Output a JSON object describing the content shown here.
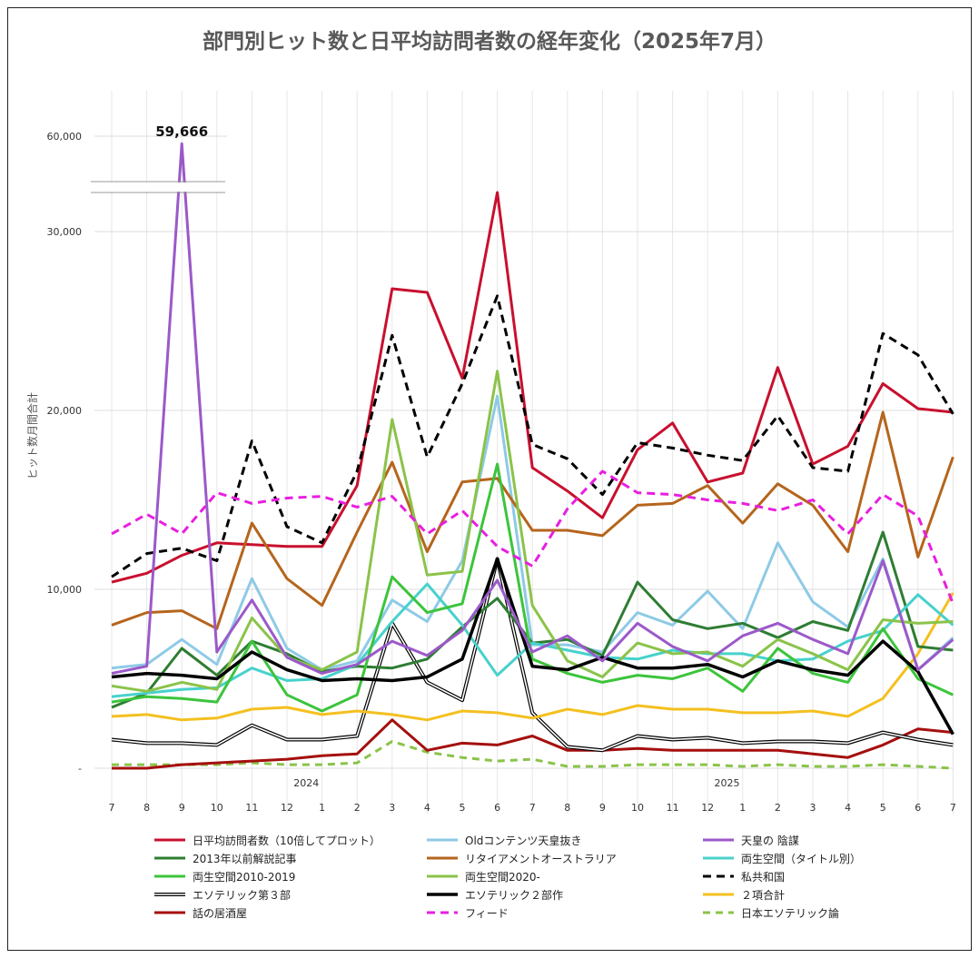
{
  "chart_data": {
    "type": "line",
    "title": "部門別ヒット数と日平均訪問者数の経年変化（2025年7月）",
    "ylabel": "ヒット数月間合計",
    "y_ticks": [
      "-",
      "10,000",
      "20,000",
      "30,000",
      "60,000"
    ],
    "peak_label": "59,666",
    "x": [
      "7",
      "8",
      "9",
      "10",
      "11",
      "12",
      "1",
      "2",
      "3",
      "4",
      "5",
      "6",
      "7",
      "8",
      "9",
      "10",
      "11",
      "12",
      "1",
      "2",
      "3",
      "4",
      "5",
      "6",
      "7"
    ],
    "year_labels": [
      {
        "index": 6,
        "text": "2024"
      },
      {
        "index": 18,
        "text": "2025"
      }
    ],
    "axis_break": {
      "low_max": 32000,
      "high_min": 58000,
      "high_max": 62000
    },
    "ylim": [
      0,
      62000
    ],
    "series": [
      {
        "name": "日平均訪問者数（10倍してプロット）",
        "color": "#c8102e",
        "dash": "solid",
        "values": [
          10400,
          10900,
          11900,
          12600,
          12500,
          12400,
          12400,
          15800,
          26800,
          26600,
          21800,
          33000,
          16800,
          15500,
          14000,
          17800,
          19300,
          16000,
          16500,
          22400,
          17000,
          18000,
          21500,
          20100,
          19900
        ]
      },
      {
        "name": "Oldコンテンツ天皇抜き",
        "color": "#8ecae6",
        "dash": "solid",
        "values": [
          5600,
          5800,
          7200,
          5800,
          10600,
          6700,
          5500,
          6000,
          9400,
          8200,
          11600,
          20800,
          6900,
          6900,
          6500,
          8700,
          8000,
          9900,
          7800,
          12600,
          9300,
          7900,
          11700,
          5500,
          7300
        ]
      },
      {
        "name": "天皇の 陰謀",
        "color": "#9b59c9",
        "dash": "solid",
        "values": [
          5300,
          5700,
          59666,
          6500,
          9400,
          6200,
          5300,
          5800,
          7100,
          6300,
          7700,
          10500,
          6500,
          7400,
          6000,
          8100,
          6800,
          6000,
          7400,
          8100,
          7200,
          6400,
          11600,
          5500,
          7200
        ]
      },
      {
        "name": "2013年以前解説記事",
        "color": "#2e7d32",
        "dash": "solid",
        "values": [
          3400,
          4200,
          6700,
          5200,
          7100,
          6400,
          5400,
          5700,
          5600,
          6100,
          7900,
          9500,
          7000,
          7200,
          6300,
          10400,
          8300,
          7800,
          8100,
          7300,
          8200,
          7700,
          13200,
          6800,
          6600
        ]
      },
      {
        "name": "リタイアメントオーストラリア",
        "color": "#b5651d",
        "dash": "solid",
        "values": [
          8000,
          8700,
          8800,
          7800,
          13700,
          10600,
          9100,
          13200,
          17100,
          12100,
          16000,
          16200,
          13300,
          13300,
          13000,
          14700,
          14800,
          15800,
          13700,
          15900,
          14700,
          12100,
          19900,
          11800,
          17400
        ]
      },
      {
        "name": "両生空間（タイトル別）",
        "color": "#48d1cc",
        "dash": "solid",
        "values": [
          4000,
          4200,
          4400,
          4500,
          5600,
          4900,
          5000,
          5800,
          8200,
          10300,
          8000,
          5200,
          7000,
          6600,
          6200,
          6100,
          6600,
          6400,
          6400,
          6000,
          6100,
          7100,
          7700,
          9700,
          8000
        ]
      },
      {
        "name": "両生空間2010-2019",
        "color": "#3cc43c",
        "dash": "solid",
        "values": [
          3700,
          4000,
          3900,
          3700,
          7100,
          4100,
          3200,
          4100,
          10700,
          8700,
          9200,
          17000,
          6100,
          5300,
          4800,
          5200,
          5000,
          5600,
          4300,
          6700,
          5300,
          4800,
          7800,
          5000,
          4100
        ]
      },
      {
        "name": "両生空間2020-",
        "color": "#8bc34a",
        "dash": "solid",
        "values": [
          4600,
          4300,
          4800,
          4400,
          8400,
          6200,
          5500,
          6500,
          19500,
          10800,
          11000,
          22200,
          9100,
          6000,
          5100,
          7000,
          6400,
          6500,
          5700,
          7200,
          6400,
          5500,
          8300,
          8100,
          8200
        ]
      },
      {
        "name": "私共和国",
        "color": "#000000",
        "dash": "dash",
        "values": [
          10700,
          12000,
          12300,
          11600,
          18300,
          13500,
          12600,
          16600,
          24200,
          17400,
          21500,
          26400,
          18100,
          17300,
          15300,
          18200,
          17900,
          17500,
          17200,
          19700,
          16800,
          16600,
          24300,
          23100,
          19800
        ]
      },
      {
        "name": "エソテリック第３部",
        "color": "#000000",
        "dash": "double",
        "values": [
          1600,
          1400,
          1400,
          1300,
          2400,
          1600,
          1600,
          1800,
          8100,
          4800,
          3800,
          11700,
          3100,
          1200,
          1000,
          1800,
          1600,
          1700,
          1400,
          1500,
          1500,
          1400,
          2000,
          1600,
          1300
        ]
      },
      {
        "name": "エソテリック２部作",
        "color": "#000000",
        "dash": "solid-thick",
        "values": [
          5100,
          5300,
          5200,
          5000,
          6500,
          5500,
          4900,
          5000,
          4900,
          5100,
          6100,
          11700,
          5700,
          5500,
          6200,
          5600,
          5600,
          5800,
          5100,
          6000,
          5500,
          5200,
          7100,
          5400,
          1900
        ]
      },
      {
        "name": "２項合計",
        "color": "#f4c020",
        "dash": "solid",
        "values": [
          2900,
          3000,
          2700,
          2800,
          3300,
          3400,
          3000,
          3200,
          3000,
          2700,
          3200,
          3100,
          2800,
          3300,
          3000,
          3500,
          3300,
          3300,
          3100,
          3100,
          3200,
          2900,
          3900,
          6400,
          9800
        ]
      },
      {
        "name": "話の居酒屋",
        "color": "#a50f0f",
        "dash": "solid",
        "values": [
          0,
          0,
          200,
          300,
          400,
          500,
          700,
          800,
          2700,
          1000,
          1400,
          1300,
          1800,
          1000,
          1000,
          1100,
          1000,
          1000,
          1000,
          1000,
          800,
          600,
          1300,
          2200,
          2000
        ]
      },
      {
        "name": "フィード",
        "color": "#e91ee0",
        "dash": "dash",
        "values": [
          13100,
          14200,
          13100,
          15400,
          14800,
          15100,
          15200,
          14600,
          15200,
          13100,
          14400,
          12400,
          11300,
          14500,
          16600,
          15400,
          15300,
          15000,
          14800,
          14400,
          15000,
          13100,
          15300,
          14100,
          9200
        ]
      },
      {
        "name": "日本エソテリック論",
        "color": "#8bc34a",
        "dash": "dash-light",
        "values": [
          200,
          200,
          200,
          200,
          300,
          200,
          200,
          300,
          1500,
          900,
          600,
          400,
          500,
          100,
          100,
          200,
          200,
          200,
          100,
          200,
          100,
          100,
          200,
          100,
          0
        ]
      }
    ],
    "legend": {
      "placement": "bottom",
      "columns": 3
    }
  }
}
